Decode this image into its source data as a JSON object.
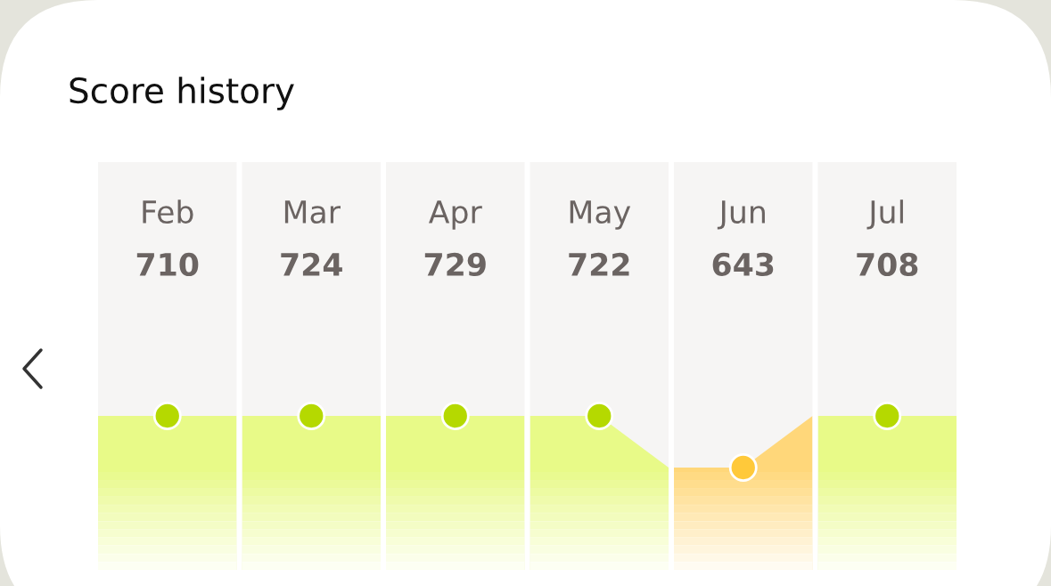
{
  "chart_data": {
    "type": "other",
    "title": "Score history",
    "categories": [
      "Feb",
      "Mar",
      "Apr",
      "May",
      "Jun",
      "Jul"
    ],
    "values": [
      710,
      724,
      729,
      722,
      643,
      708
    ],
    "colors": [
      "#b5d900",
      "#b5d900",
      "#b5d900",
      "#b5d900",
      "#ffc93a",
      "#b5d900"
    ],
    "data_labels": true
  }
}
